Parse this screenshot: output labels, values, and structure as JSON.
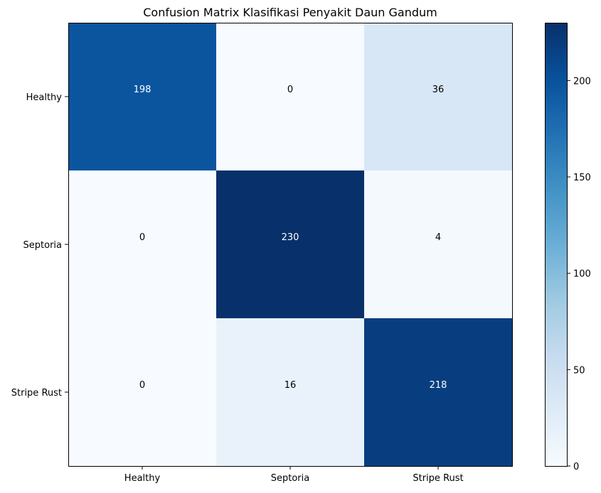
{
  "chart_data": {
    "type": "heatmap",
    "title": "Confusion Matrix Klasifikasi Penyakit Daun Gandum",
    "xlabel": "",
    "ylabel": "",
    "x_categories": [
      "Healthy",
      "Septoria",
      "Stripe Rust"
    ],
    "y_categories": [
      "Healthy",
      "Septoria",
      "Stripe Rust"
    ],
    "values": [
      [
        198,
        0,
        36
      ],
      [
        0,
        230,
        4
      ],
      [
        0,
        16,
        218
      ]
    ],
    "colormap": "Blues",
    "color_range": [
      0,
      230
    ],
    "colorbar_ticks": [
      0,
      50,
      100,
      150,
      200
    ],
    "grid": false
  }
}
